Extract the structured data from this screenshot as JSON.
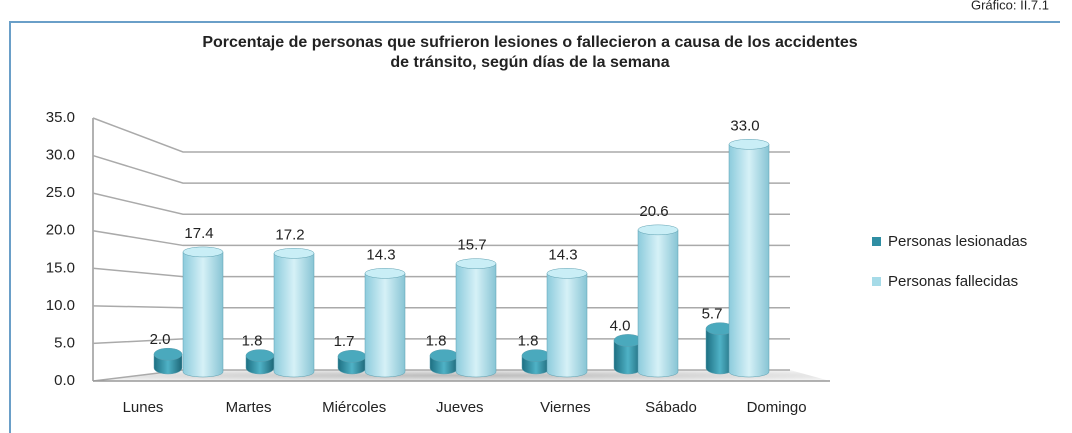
{
  "figure_label": "Gráfico: II.7.1",
  "chart_data": {
    "type": "bar3d",
    "title": [
      "Porcentaje de personas que sufrieron lesiones o fallecieron a causa de los accidentes",
      "de tránsito, según días de la semana"
    ],
    "categories": [
      "Lunes",
      "Martes",
      "Miércoles",
      "Jueves",
      "Viernes",
      "Sábado",
      "Domingo"
    ],
    "series": [
      {
        "name": "Personas lesionadas",
        "color": "#2f8ea3",
        "values": [
          2,
          1.8,
          1.7,
          1.8,
          1.8,
          4,
          5.7
        ],
        "value_labels": [
          "2.0",
          "1.8",
          "1.7",
          "1.8",
          "1.8",
          "4.0",
          "5.7"
        ]
      },
      {
        "name": "Personas fallecidas",
        "color": "#a6dbe8",
        "values": [
          17.4,
          17.2,
          14.3,
          15.7,
          14.3,
          20.6,
          33
        ],
        "value_labels": [
          "17.4",
          "17.2",
          "14.3",
          "15.7",
          "14.3",
          "20.6",
          "33.0"
        ]
      }
    ],
    "ylim": [
      0,
      35
    ],
    "yticks": [
      {
        "value": 0,
        "label": "0.0"
      },
      {
        "value": 5,
        "label": "5.0"
      },
      {
        "value": 10,
        "label": "10.0"
      },
      {
        "value": 15,
        "label": "15.0"
      },
      {
        "value": 20,
        "label": "20.0"
      },
      {
        "value": 25,
        "label": "25.0"
      },
      {
        "value": 30,
        "label": "30.0"
      },
      {
        "value": 35,
        "label": "35.0"
      }
    ],
    "grid": true,
    "legend": "right"
  }
}
